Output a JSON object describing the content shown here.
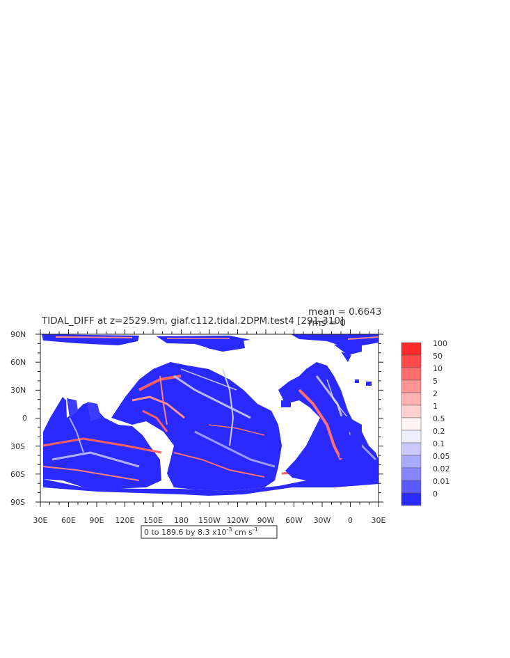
{
  "title": "TIDAL_DIFF at z=2529.9m, giaf.c112.tidal.2DPM.test4 [291-310]",
  "stats": {
    "mean": "mean = 0.6643",
    "rms": "rms = 0"
  },
  "chart_data": {
    "type": "heatmap",
    "variable": "TIDAL_DIFF",
    "depth": "z=2529.9m",
    "run": "giaf.c112.tidal.2DPM.test4",
    "years": "[291-310]",
    "y_ticks": [
      "90N",
      "60N",
      "30N",
      "0",
      "30S",
      "60S",
      "90S"
    ],
    "x_ticks": [
      "30E",
      "60E",
      "90E",
      "120E",
      "150E",
      "180",
      "150W",
      "120W",
      "90W",
      "60W",
      "30W",
      "0",
      "30E"
    ],
    "contour_info": "0 to 189.6 by 8.3 x10",
    "contour_exp": "-3",
    "contour_units_a": " cm s",
    "contour_units_exp": "-1",
    "colorbar": {
      "levels": [
        "100",
        "50",
        "10",
        "5",
        "2",
        "1",
        "0.5",
        "0.2",
        "0.1",
        "0.05",
        "0.02",
        "0.01",
        "0"
      ],
      "colors": [
        "#ff2a2a",
        "#ff4a4a",
        "#ff6d6d",
        "#ff9494",
        "#ffb2b2",
        "#ffd0d0",
        "#fff3f3",
        "#eeeeff",
        "#c9c9ff",
        "#a9a9ff",
        "#8686ff",
        "#5a5aff",
        "#2a2aff"
      ]
    },
    "palette": {
      "ocean_low": "#2a2aff",
      "ocean_mid": "#9a9aff",
      "ocean_high": "#ff6060",
      "land": "#ffffff"
    }
  }
}
